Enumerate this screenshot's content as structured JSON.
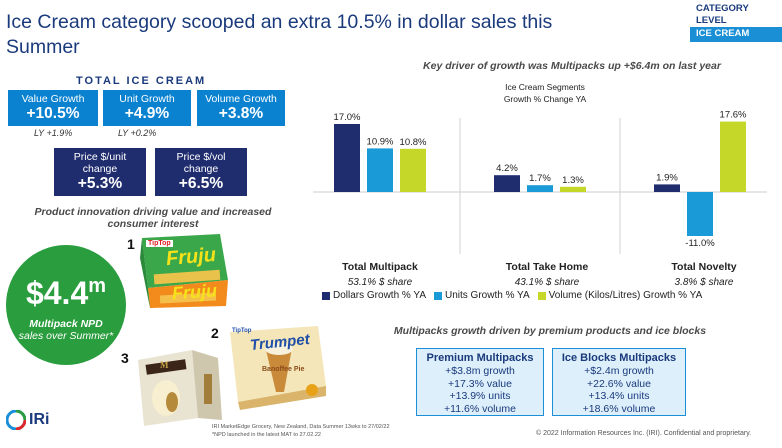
{
  "title": "Ice Cream category scooped an extra 10.5% in dollar sales this Summer",
  "category_box": {
    "line1": "CATEGORY",
    "line2": "LEVEL",
    "line3": "ICE CREAM"
  },
  "total_ice_cream": "TOTAL ICE CREAM",
  "kpis": [
    {
      "label": "Value Growth",
      "value": "+10.5%",
      "ly": "LY +1.9%"
    },
    {
      "label": "Unit Growth",
      "value": "+4.9%",
      "ly": "LY +0.2%"
    },
    {
      "label": "Volume Growth",
      "value": "+3.8%",
      "ly": ""
    }
  ],
  "price_kpis": [
    {
      "label_line1": "Price $/unit",
      "label_line2": "change",
      "value": "+5.3%"
    },
    {
      "label_line1": "Price $/vol",
      "label_line2": "change",
      "value": "+6.5%"
    }
  ],
  "innovation_caption_line1": "Product innovation driving value and increased",
  "innovation_caption_line2": "consumer interest",
  "product_numbers": [
    "1",
    "2",
    "3"
  ],
  "product_labels": {
    "fruju": "Fruju",
    "trumpet": "Trumpet",
    "trumpet_flavour": "Banoffee Pie",
    "magnum": "M",
    "tiptop": "TipTop"
  },
  "npd_circle": {
    "amount": "$4.4",
    "unit": "m",
    "line1": "Multipack NPD",
    "line2": "sales over Summer*"
  },
  "footnote_line1": "IRI MarketEdge Grocery, New Zealand, Data Summer 13wks to 27/02/22",
  "footnote_line2": "*NPD launched in the latest MAT to 27.02.22",
  "logo_text": "IRi",
  "chart_heading": "Key driver of growth was Multipacks up +$6.4m on last year",
  "chart_data": {
    "type": "bar",
    "title_line1": "Ice Cream Segments",
    "title_line2": "Growth % Change YA",
    "categories": [
      "Total Multipack",
      "Total Take Home",
      "Total Novelty"
    ],
    "category_shares": [
      "53.1% $ share",
      "43.1% $ share",
      "3.8% $ share"
    ],
    "series": [
      {
        "name": "Dollars Growth % YA",
        "color": "#1f2d6e",
        "values": [
          17.0,
          4.2,
          1.9
        ],
        "labels": [
          "17.0%",
          "4.2%",
          "1.9%"
        ]
      },
      {
        "name": "Units Growth % YA",
        "color": "#1a9ad6",
        "values": [
          10.9,
          1.7,
          -11.0
        ],
        "labels": [
          "10.9%",
          "1.7%",
          "-11.0%"
        ]
      },
      {
        "name": "Volume (Kilos/Litres) Growth % YA",
        "color": "#c5d82a",
        "values": [
          10.8,
          1.3,
          17.6
        ],
        "labels": [
          "10.8%",
          "1.3%",
          "17.6%"
        ]
      }
    ],
    "legend_position": "bottom",
    "grid": false
  },
  "premium_caption": "Multipacks growth driven by premium products and ice blocks",
  "boxes": [
    {
      "heading": "Premium Multipacks",
      "lines": [
        "+$3.8m growth",
        "+17.3% value",
        "+13.9% units",
        "+11.6% volume"
      ]
    },
    {
      "heading": "Ice Blocks Multipacks",
      "lines": [
        "+$2.4m growth",
        "+22.6% value",
        "+13.4% units",
        "+18.6% volume"
      ]
    }
  ],
  "copyright": "© 2022 Information Resources Inc. (IRI). Confidential and proprietary."
}
